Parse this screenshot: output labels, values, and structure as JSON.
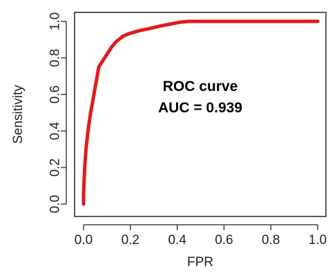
{
  "chart_data": {
    "type": "line",
    "title": "",
    "xlabel": "FPR",
    "ylabel": "Sensitivity",
    "xlim": [
      0.0,
      1.0
    ],
    "ylim": [
      0.0,
      1.0
    ],
    "x_ticks": [
      0.0,
      0.2,
      0.4,
      0.6,
      0.8,
      1.0
    ],
    "y_ticks": [
      0.0,
      0.2,
      0.4,
      0.6,
      0.8,
      1.0
    ],
    "x_tick_labels": [
      "0.0",
      "0.2",
      "0.4",
      "0.6",
      "0.8",
      "1.0"
    ],
    "y_tick_labels": [
      "0.0",
      "0.2",
      "0.4",
      "0.6",
      "0.8",
      "1.0"
    ],
    "grid": false,
    "annotations": [
      {
        "text": "ROC curve"
      },
      {
        "text": "AUC = 0.939"
      }
    ],
    "series": [
      {
        "color": "#e31a1c",
        "points": [
          [
            0.0,
            0.0
          ],
          [
            0.0,
            0.05
          ],
          [
            0.002,
            0.12
          ],
          [
            0.005,
            0.2
          ],
          [
            0.008,
            0.26
          ],
          [
            0.012,
            0.32
          ],
          [
            0.017,
            0.38
          ],
          [
            0.022,
            0.43
          ],
          [
            0.03,
            0.5
          ],
          [
            0.04,
            0.57
          ],
          [
            0.05,
            0.64
          ],
          [
            0.058,
            0.7
          ],
          [
            0.065,
            0.75
          ],
          [
            0.08,
            0.78
          ],
          [
            0.1,
            0.82
          ],
          [
            0.12,
            0.86
          ],
          [
            0.14,
            0.89
          ],
          [
            0.17,
            0.92
          ],
          [
            0.2,
            0.935
          ],
          [
            0.24,
            0.95
          ],
          [
            0.28,
            0.96
          ],
          [
            0.33,
            0.975
          ],
          [
            0.37,
            0.985
          ],
          [
            0.41,
            0.995
          ],
          [
            0.45,
            1.0
          ],
          [
            0.6,
            1.0
          ],
          [
            0.8,
            1.0
          ],
          [
            1.0,
            1.0
          ]
        ]
      }
    ]
  }
}
